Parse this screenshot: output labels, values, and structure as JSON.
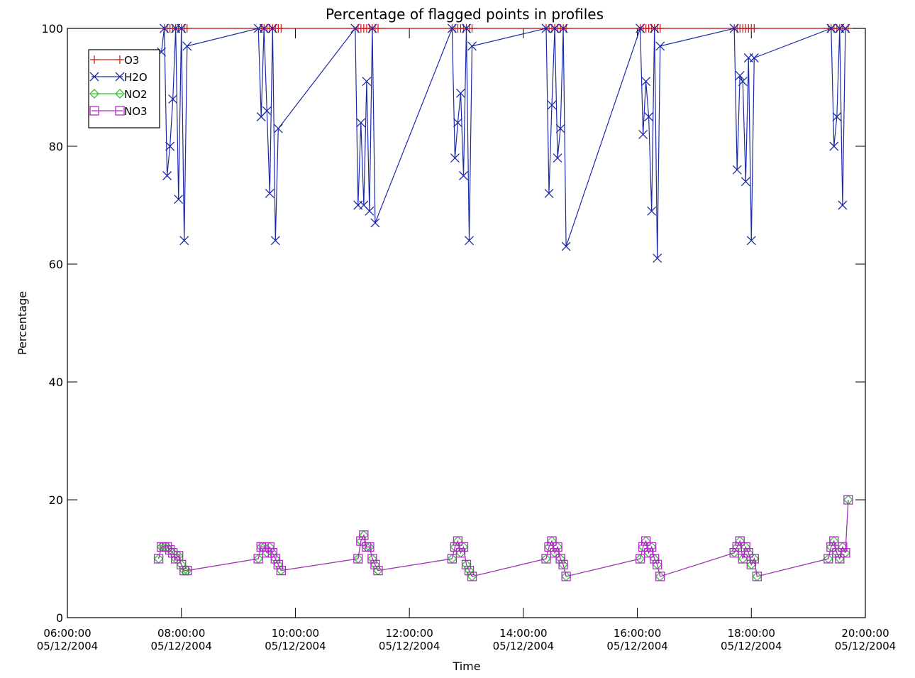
{
  "chart_data": {
    "type": "line",
    "title": "Percentage of flagged points in profiles",
    "xlabel": "Time",
    "ylabel": "Percentage",
    "ylim": [
      0,
      100
    ],
    "xlim_hours": [
      6,
      20
    ],
    "grid": false,
    "legend_placement": "top-left",
    "x_ticks": [
      {
        "time": "06:00:00",
        "date": "05/12/2004",
        "hour": 6
      },
      {
        "time": "08:00:00",
        "date": "05/12/2004",
        "hour": 8
      },
      {
        "time": "10:00:00",
        "date": "05/12/2004",
        "hour": 10
      },
      {
        "time": "12:00:00",
        "date": "05/12/2004",
        "hour": 12
      },
      {
        "time": "14:00:00",
        "date": "05/12/2004",
        "hour": 14
      },
      {
        "time": "16:00:00",
        "date": "05/12/2004",
        "hour": 16
      },
      {
        "time": "18:00:00",
        "date": "05/12/2004",
        "hour": 18
      },
      {
        "time": "20:00:00",
        "date": "05/12/2004",
        "hour": 20
      }
    ],
    "y_ticks": [
      0,
      20,
      40,
      60,
      80,
      100
    ],
    "series": [
      {
        "name": "O3",
        "color": "#d42020",
        "marker": "plus",
        "x": [
          7.7,
          7.75,
          7.8,
          7.85,
          7.9,
          7.95,
          8.0,
          8.05,
          8.1,
          9.4,
          9.45,
          9.5,
          9.55,
          9.6,
          9.65,
          9.7,
          9.75,
          11.1,
          11.15,
          11.2,
          11.25,
          11.3,
          11.35,
          11.4,
          11.45,
          12.75,
          12.8,
          12.85,
          12.9,
          12.95,
          13.0,
          13.05,
          13.1,
          14.4,
          14.45,
          14.5,
          14.55,
          14.6,
          14.65,
          14.7,
          14.75,
          16.05,
          16.1,
          16.15,
          16.2,
          16.25,
          16.3,
          16.35,
          16.4,
          17.7,
          17.75,
          17.8,
          17.85,
          17.9,
          17.95,
          18.0,
          18.05,
          19.35,
          19.4,
          19.45,
          19.5,
          19.55,
          19.6,
          19.7
        ],
        "values": [
          100,
          100,
          100,
          100,
          100,
          100,
          100,
          100,
          100,
          100,
          100,
          100,
          100,
          100,
          100,
          100,
          100,
          100,
          100,
          100,
          100,
          100,
          100,
          100,
          100,
          100,
          100,
          100,
          100,
          100,
          100,
          100,
          100,
          100,
          100,
          100,
          100,
          100,
          100,
          100,
          100,
          100,
          100,
          100,
          100,
          100,
          100,
          100,
          100,
          100,
          100,
          100,
          100,
          100,
          100,
          100,
          100,
          100,
          100,
          100,
          100,
          100,
          100,
          100
        ]
      },
      {
        "name": "H2O",
        "color": "#1c2aa8",
        "marker": "cross",
        "x": [
          7.65,
          7.7,
          7.75,
          7.8,
          7.85,
          7.9,
          7.95,
          8.0,
          8.05,
          8.1,
          9.35,
          9.4,
          9.45,
          9.5,
          9.55,
          9.6,
          9.65,
          9.7,
          11.05,
          11.1,
          11.15,
          11.2,
          11.25,
          11.3,
          11.35,
          11.4,
          12.75,
          12.8,
          12.85,
          12.9,
          12.95,
          13.0,
          13.05,
          13.1,
          14.4,
          14.45,
          14.5,
          14.55,
          14.6,
          14.65,
          14.7,
          14.75,
          16.05,
          16.1,
          16.15,
          16.2,
          16.25,
          16.3,
          16.35,
          16.4,
          17.7,
          17.75,
          17.8,
          17.85,
          17.9,
          17.95,
          18.0,
          18.05,
          19.4,
          19.45,
          19.5,
          19.55,
          19.6,
          19.65
        ],
        "values": [
          96,
          100,
          75,
          80,
          88,
          100,
          71,
          100,
          64,
          97,
          100,
          85,
          100,
          86,
          72,
          100,
          64,
          83,
          100,
          70,
          84,
          70,
          91,
          69,
          100,
          67,
          100,
          78,
          84,
          89,
          75,
          100,
          64,
          97,
          100,
          72,
          87,
          100,
          78,
          83,
          100,
          63,
          100,
          82,
          91,
          85,
          69,
          100,
          61,
          97,
          100,
          76,
          92,
          91,
          74,
          95,
          64,
          95,
          100,
          80,
          85,
          100,
          70,
          100
        ]
      },
      {
        "name": "NO2",
        "color": "#2ec42e",
        "marker": "diamond",
        "x": [
          7.6,
          7.65,
          7.7,
          7.75,
          7.8,
          7.85,
          7.9,
          7.95,
          8.0,
          8.05,
          8.1,
          9.35,
          9.4,
          9.45,
          9.5,
          9.55,
          9.6,
          9.65,
          9.7,
          9.75,
          11.1,
          11.15,
          11.2,
          11.25,
          11.3,
          11.35,
          11.4,
          11.45,
          12.75,
          12.8,
          12.85,
          12.9,
          12.95,
          13.0,
          13.05,
          13.1,
          14.4,
          14.45,
          14.5,
          14.55,
          14.6,
          14.65,
          14.7,
          14.75,
          16.05,
          16.1,
          16.15,
          16.2,
          16.25,
          16.3,
          16.35,
          16.4,
          17.7,
          17.75,
          17.8,
          17.85,
          17.9,
          17.95,
          18.0,
          18.05,
          18.1,
          19.35,
          19.4,
          19.45,
          19.5,
          19.55,
          19.6,
          19.65,
          19.7
        ],
        "values": [
          10,
          12,
          12,
          12,
          11.5,
          11,
          10,
          10.5,
          9,
          8,
          8,
          10,
          12,
          12,
          11,
          12,
          11,
          10,
          9,
          8,
          10,
          13,
          14,
          12,
          12,
          10,
          9,
          8,
          10,
          12,
          13,
          11,
          12,
          9,
          8,
          7,
          10,
          12,
          13,
          11,
          12,
          10,
          9,
          7,
          10,
          12,
          13,
          11,
          12,
          10,
          9,
          7,
          11,
          12,
          13,
          10,
          12,
          11,
          9,
          10,
          7,
          10,
          12,
          13,
          11,
          10,
          12,
          11,
          20
        ]
      },
      {
        "name": "NO3",
        "color": "#b02cc4",
        "marker": "square",
        "x": [
          7.6,
          7.65,
          7.7,
          7.75,
          7.8,
          7.85,
          7.9,
          7.95,
          8.0,
          8.05,
          8.1,
          9.35,
          9.4,
          9.45,
          9.5,
          9.55,
          9.6,
          9.65,
          9.7,
          9.75,
          11.1,
          11.15,
          11.2,
          11.25,
          11.3,
          11.35,
          11.4,
          11.45,
          12.75,
          12.8,
          12.85,
          12.9,
          12.95,
          13.0,
          13.05,
          13.1,
          14.4,
          14.45,
          14.5,
          14.55,
          14.6,
          14.65,
          14.7,
          14.75,
          16.05,
          16.1,
          16.15,
          16.2,
          16.25,
          16.3,
          16.35,
          16.4,
          17.7,
          17.75,
          17.8,
          17.85,
          17.9,
          17.95,
          18.0,
          18.05,
          18.1,
          19.35,
          19.4,
          19.45,
          19.5,
          19.55,
          19.6,
          19.65,
          19.7
        ],
        "values": [
          10,
          12,
          12,
          12,
          11.5,
          11,
          10,
          10.5,
          9,
          8,
          8,
          10,
          12,
          12,
          11,
          12,
          11,
          10,
          9,
          8,
          10,
          13,
          14,
          12,
          12,
          10,
          9,
          8,
          10,
          12,
          13,
          11,
          12,
          9,
          8,
          7,
          10,
          12,
          13,
          11,
          12,
          10,
          9,
          7,
          10,
          12,
          13,
          11,
          12,
          10,
          9,
          7,
          11,
          12,
          13,
          10,
          12,
          11,
          9,
          10,
          7,
          10,
          12,
          13,
          11,
          10,
          12,
          11,
          20
        ]
      }
    ]
  }
}
